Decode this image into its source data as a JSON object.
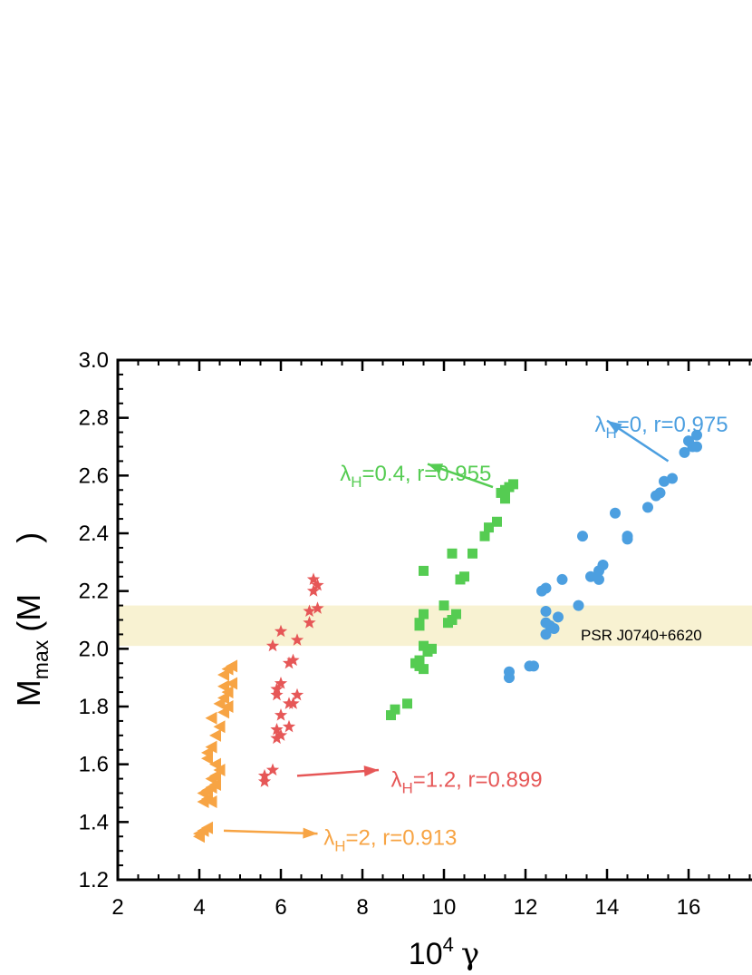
{
  "chart_data": {
    "type": "scatter",
    "xlabel": {
      "base": "10",
      "exp": "4",
      "sym": "γ"
    },
    "ylabel": {
      "main": "M",
      "sub": "max",
      "unit": "(M",
      "unit_close": ")"
    },
    "xlim": [
      2,
      18
    ],
    "ylim": [
      1.2,
      3.0
    ],
    "x_ticks": [
      2,
      4,
      6,
      8,
      10,
      12,
      14,
      16
    ],
    "y_ticks": [
      1.2,
      1.4,
      1.6,
      1.8,
      2.0,
      2.2,
      2.4,
      2.6,
      2.8,
      3.0
    ],
    "band": {
      "y_range": [
        2.01,
        2.15
      ],
      "label": "PSR J0740+6620",
      "color": "#f8f2d2"
    },
    "series": [
      {
        "name": "λ_H=0, r=0.975",
        "label": {
          "pre": "λ",
          "sub": "H",
          "post": "=0, r=0.975"
        },
        "label_pos": [
          13.7,
          2.78
        ],
        "arrow": {
          "from": [
            15.5,
            2.65
          ],
          "to": [
            14.0,
            2.79
          ]
        },
        "marker": "circle",
        "color": "#4c9fe0",
        "points": [
          [
            16.2,
            2.74
          ],
          [
            16.0,
            2.72
          ],
          [
            16.1,
            2.7
          ],
          [
            16.2,
            2.7
          ],
          [
            15.9,
            2.68
          ],
          [
            15.6,
            2.59
          ],
          [
            15.4,
            2.58
          ],
          [
            15.3,
            2.54
          ],
          [
            15.2,
            2.53
          ],
          [
            15.0,
            2.49
          ],
          [
            14.2,
            2.47
          ],
          [
            13.4,
            2.39
          ],
          [
            14.5,
            2.39
          ],
          [
            14.5,
            2.38
          ],
          [
            13.9,
            2.29
          ],
          [
            13.8,
            2.27
          ],
          [
            13.6,
            2.25
          ],
          [
            13.8,
            2.24
          ],
          [
            12.9,
            2.24
          ],
          [
            12.5,
            2.21
          ],
          [
            12.4,
            2.2
          ],
          [
            13.3,
            2.15
          ],
          [
            12.5,
            2.13
          ],
          [
            12.8,
            2.11
          ],
          [
            12.5,
            2.09
          ],
          [
            12.6,
            2.08
          ],
          [
            12.7,
            2.07
          ],
          [
            12.5,
            2.05
          ],
          [
            12.2,
            1.94
          ],
          [
            12.1,
            1.94
          ],
          [
            11.6,
            1.92
          ],
          [
            11.6,
            1.9
          ]
        ]
      },
      {
        "name": "λ_H=0.4, r=0.955",
        "label": {
          "pre": "λ",
          "sub": "H",
          "post": "=0.4, r=0.955"
        },
        "label_pos": [
          7.45,
          2.61
        ],
        "arrow": {
          "from": [
            11.2,
            2.56
          ],
          "to": [
            9.6,
            2.64
          ]
        },
        "marker": "square",
        "color": "#55cc52",
        "points": [
          [
            11.7,
            2.57
          ],
          [
            11.6,
            2.56
          ],
          [
            11.5,
            2.55
          ],
          [
            11.4,
            2.54
          ],
          [
            11.5,
            2.52
          ],
          [
            11.3,
            2.44
          ],
          [
            11.1,
            2.42
          ],
          [
            11.0,
            2.39
          ],
          [
            10.7,
            2.33
          ],
          [
            10.2,
            2.33
          ],
          [
            10.5,
            2.25
          ],
          [
            10.4,
            2.24
          ],
          [
            9.5,
            2.27
          ],
          [
            10.0,
            2.15
          ],
          [
            10.3,
            2.12
          ],
          [
            10.2,
            2.1
          ],
          [
            10.1,
            2.09
          ],
          [
            9.5,
            2.12
          ],
          [
            9.4,
            2.09
          ],
          [
            9.4,
            2.08
          ],
          [
            9.5,
            2.01
          ],
          [
            9.7,
            2.0
          ],
          [
            9.6,
            1.99
          ],
          [
            9.4,
            1.96
          ],
          [
            9.4,
            1.94
          ],
          [
            9.5,
            1.93
          ],
          [
            9.3,
            1.95
          ],
          [
            9.1,
            1.81
          ],
          [
            8.8,
            1.79
          ],
          [
            8.7,
            1.77
          ]
        ]
      },
      {
        "name": "λ_H=1.2, r=0.899",
        "label": {
          "pre": "λ",
          "sub": "H",
          "post": "=1.2, r=0.899"
        },
        "label_pos": [
          8.7,
          1.55
        ],
        "arrow": {
          "from": [
            6.4,
            1.56
          ],
          "to": [
            8.4,
            1.58
          ]
        },
        "marker": "star",
        "color": "#e65757",
        "points": [
          [
            6.8,
            2.24
          ],
          [
            6.9,
            2.22
          ],
          [
            6.8,
            2.2
          ],
          [
            6.9,
            2.14
          ],
          [
            6.7,
            2.13
          ],
          [
            6.7,
            2.09
          ],
          [
            6.4,
            2.03
          ],
          [
            6.0,
            2.06
          ],
          [
            5.8,
            2.01
          ],
          [
            6.3,
            1.96
          ],
          [
            6.2,
            1.95
          ],
          [
            6.0,
            1.88
          ],
          [
            5.9,
            1.86
          ],
          [
            5.9,
            1.84
          ],
          [
            6.4,
            1.84
          ],
          [
            6.3,
            1.81
          ],
          [
            6.2,
            1.81
          ],
          [
            6.0,
            1.77
          ],
          [
            6.2,
            1.73
          ],
          [
            5.9,
            1.72
          ],
          [
            6.0,
            1.7
          ],
          [
            5.9,
            1.69
          ],
          [
            5.8,
            1.58
          ],
          [
            5.6,
            1.56
          ],
          [
            5.6,
            1.54
          ]
        ]
      },
      {
        "name": "λ_H=2, r=0.913",
        "label": {
          "pre": "λ",
          "sub": "H",
          "post": "=2, r=0.913"
        },
        "label_pos": [
          7.05,
          1.35
        ],
        "arrow": {
          "from": [
            4.6,
            1.37
          ],
          "to": [
            6.9,
            1.36
          ]
        },
        "marker": "triangle-left",
        "color": "#f7a444",
        "points": [
          [
            4.8,
            1.94
          ],
          [
            4.7,
            1.93
          ],
          [
            4.6,
            1.91
          ],
          [
            4.8,
            1.88
          ],
          [
            4.6,
            1.87
          ],
          [
            4.7,
            1.85
          ],
          [
            4.6,
            1.83
          ],
          [
            4.5,
            1.81
          ],
          [
            4.7,
            1.8
          ],
          [
            4.6,
            1.78
          ],
          [
            4.3,
            1.76
          ],
          [
            4.5,
            1.73
          ],
          [
            4.4,
            1.7
          ],
          [
            4.3,
            1.66
          ],
          [
            4.2,
            1.64
          ],
          [
            4.2,
            1.62
          ],
          [
            4.4,
            1.6
          ],
          [
            4.5,
            1.58
          ],
          [
            4.4,
            1.56
          ],
          [
            4.3,
            1.55
          ],
          [
            4.4,
            1.53
          ],
          [
            4.3,
            1.52
          ],
          [
            4.2,
            1.51
          ],
          [
            4.1,
            1.5
          ],
          [
            4.2,
            1.48
          ],
          [
            4.1,
            1.47
          ],
          [
            4.3,
            1.47
          ],
          [
            4.2,
            1.38
          ],
          [
            4.1,
            1.37
          ],
          [
            4.0,
            1.36
          ],
          [
            4.0,
            1.35
          ]
        ]
      }
    ]
  }
}
